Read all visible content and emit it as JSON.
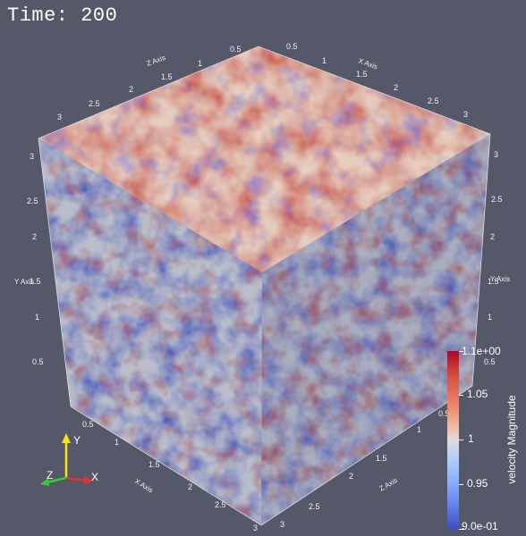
{
  "time": {
    "text": "Time: 200"
  },
  "axes": {
    "x_title": "X Axis",
    "y_title": "Y Axis",
    "z_title": "Z Axis",
    "top_z_ticks": [
      "0.5",
      "1",
      "1.5",
      "2",
      "2.5",
      "3"
    ],
    "top_x_ticks": [
      "0.5",
      "1",
      "1.5",
      "2",
      "2.5",
      "3"
    ],
    "left_y_ticks": [
      "3",
      "2.5",
      "2",
      "1.5",
      "1",
      "0.5"
    ],
    "right_y_ticks": [
      "3",
      "2.5",
      "2",
      "1.5",
      "1",
      "0.5"
    ],
    "bottom_x_ticks": [
      "0.5",
      "1",
      "1.5",
      "2",
      "2.5",
      "3"
    ],
    "bottom_z_ticks": [
      "3",
      "2.5",
      "2",
      "1.5",
      "1",
      "0.5"
    ]
  },
  "colorbar": {
    "title": "velocity Magnitude",
    "max_label": "1.1e+00",
    "min_label": "9.0e-01",
    "ticks": [
      "1.05",
      "1",
      "0.95"
    ],
    "colors": {
      "high": "#b40426",
      "mid": "#dddcdc",
      "low": "#3b4cc0"
    }
  },
  "orientation": {
    "x_label": "X",
    "y_label": "Y",
    "z_label": "Z",
    "colors": {
      "x": "#e8332a",
      "y": "#f5e616",
      "z": "#2fd12f"
    }
  },
  "background": "#545869"
}
